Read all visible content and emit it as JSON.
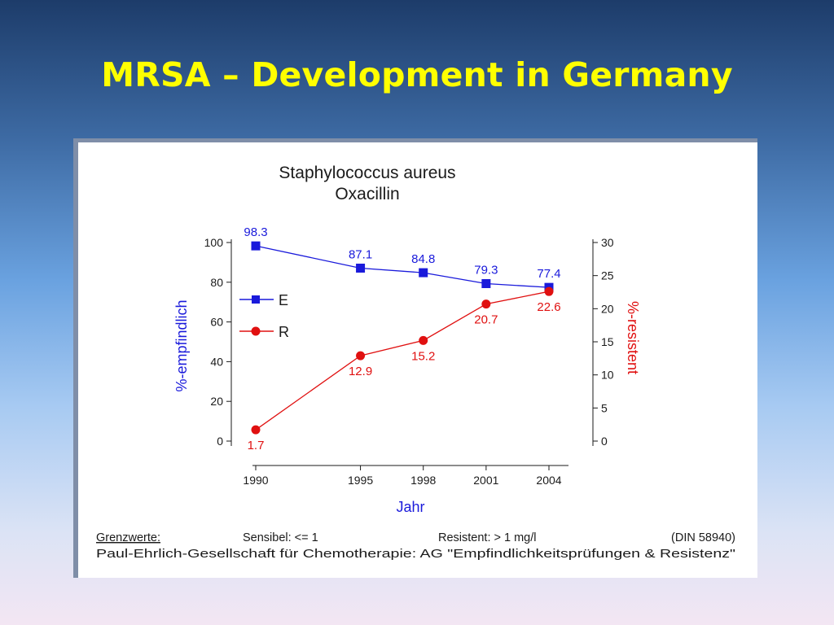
{
  "slide": {
    "title": "MRSA – Development in Germany"
  },
  "chart_data": {
    "type": "line",
    "title": "Staphylococcus aureus",
    "subtitle": "Oxacillin",
    "xlabel": "Jahr",
    "ylabel_left": "%-empfindlich",
    "ylabel_right": "%-resistent",
    "x": [
      "1990",
      "1995",
      "1998",
      "2001",
      "2004"
    ],
    "x_numeric": [
      1990,
      1995,
      1998,
      2001,
      2004
    ],
    "ylim_left": [
      0,
      100
    ],
    "ylim_right": [
      0,
      30
    ],
    "yticks_left": [
      "0",
      "20",
      "40",
      "60",
      "80",
      "100"
    ],
    "yticks_right": [
      "0",
      "5",
      "10",
      "15",
      "20",
      "25",
      "30"
    ],
    "legend_placement": "left",
    "series": [
      {
        "name": "E",
        "axis": "left",
        "color": "#1a1adb",
        "marker": "square",
        "values": [
          98.3,
          87.1,
          84.8,
          79.3,
          77.4
        ],
        "labels": [
          "98.3",
          "87.1",
          "84.8",
          "79.3",
          "77.4"
        ]
      },
      {
        "name": "R",
        "axis": "right",
        "color": "#e01010",
        "marker": "circle",
        "values": [
          1.7,
          12.9,
          15.2,
          20.7,
          22.6
        ],
        "labels": [
          "1.7",
          "12.9",
          "15.2",
          "20.7",
          "22.6"
        ]
      }
    ],
    "footer": {
      "breakpoints_label": "Grenzwerte:",
      "sensible": "Sensibel: <= 1",
      "resistant": "Resistent: > 1 mg/l",
      "standard": "(DIN 58940)",
      "source": "Paul-Ehrlich-Gesellschaft für Chemotherapie: AG \"Empfindlichkeitsprüfungen & Resistenz\""
    }
  }
}
